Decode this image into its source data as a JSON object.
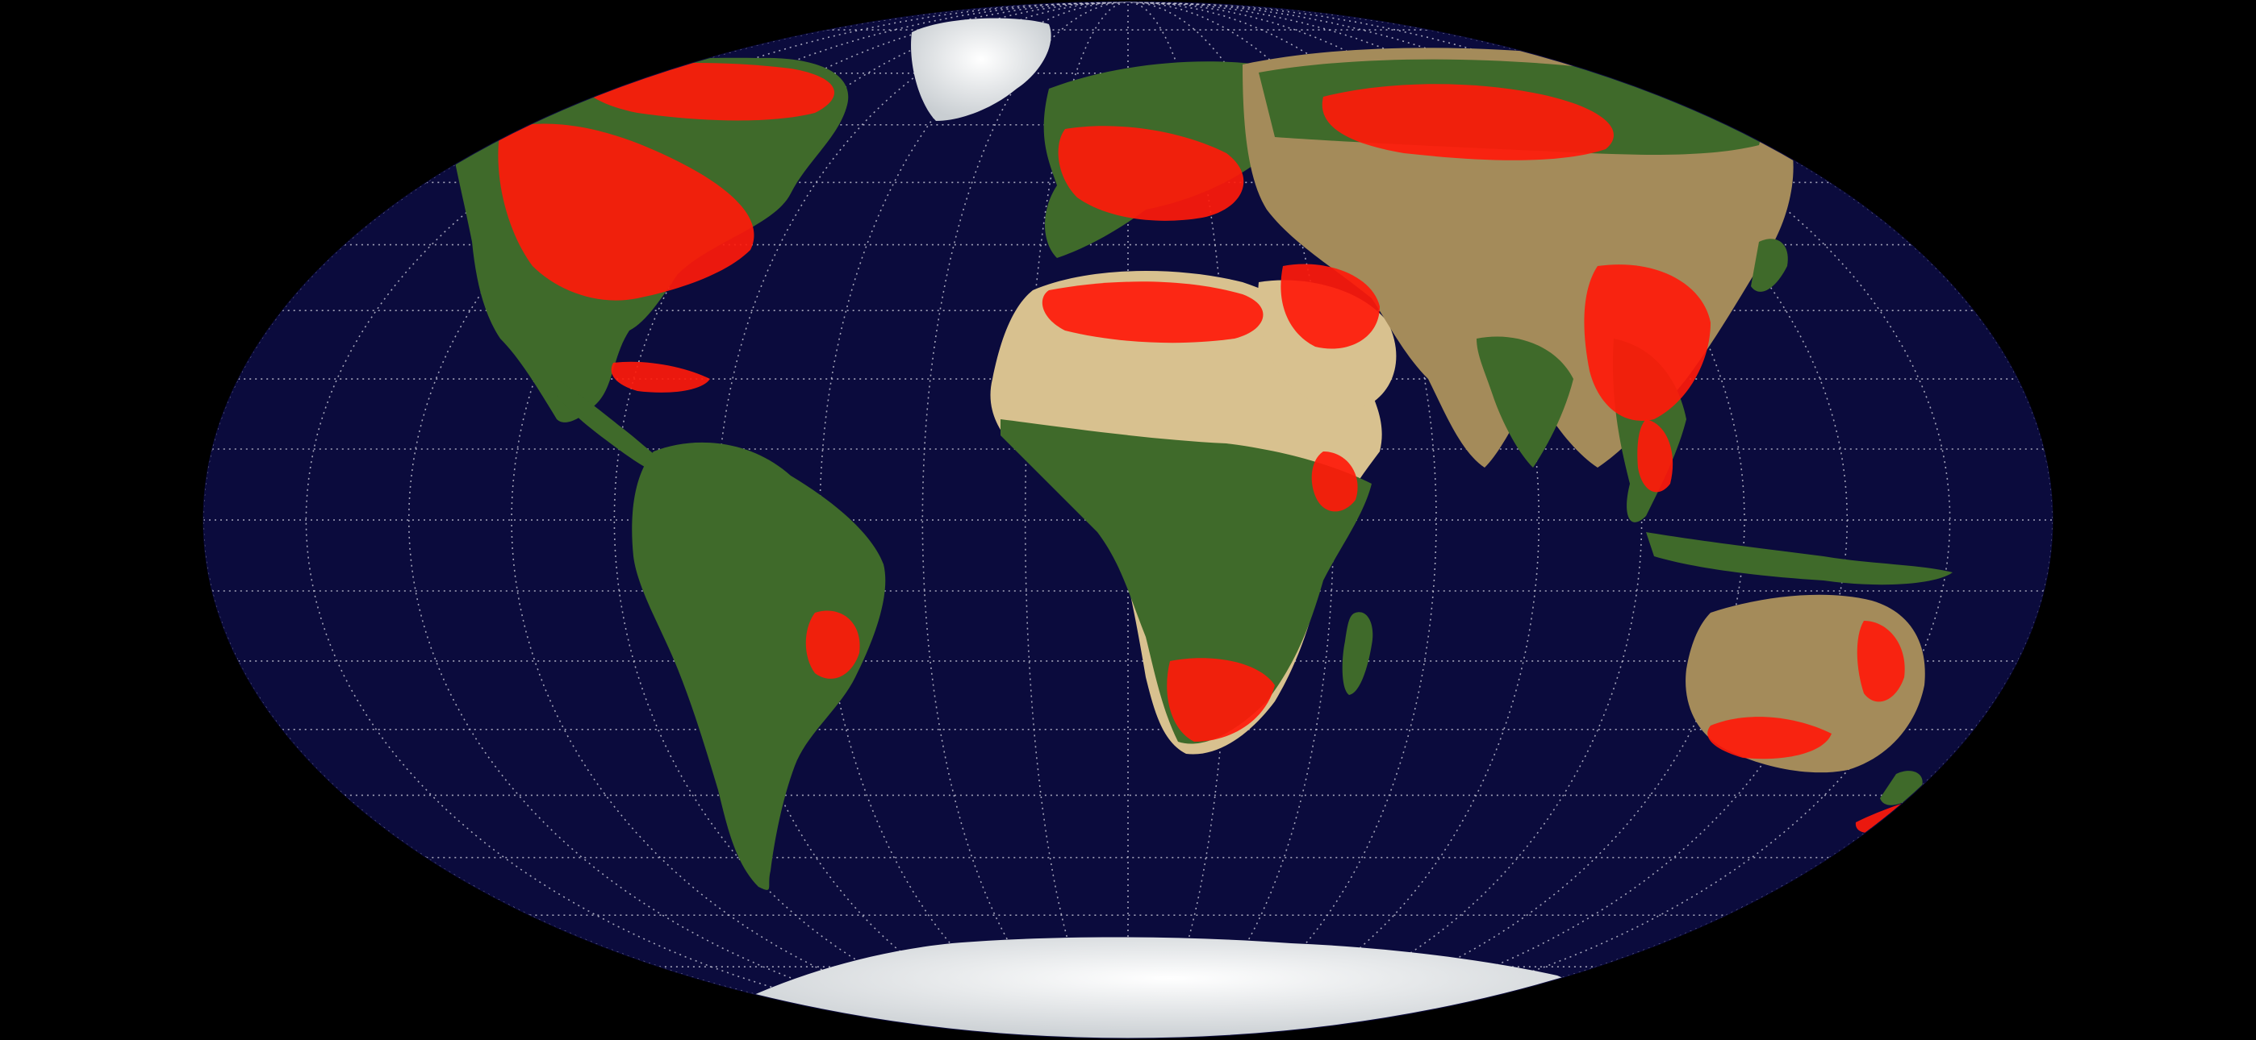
{
  "map": {
    "projection": "mollweide",
    "background_color": "#000000",
    "ocean_color": "#0b0b3d",
    "graticule_color": "#c8c8d8",
    "highlight_color": "#ff1a0a",
    "ice_color": "#eef1f3",
    "land_colors": {
      "vegetation": "#3f6a2a",
      "dry": "#a48b5a",
      "desert": "#d8c18f"
    },
    "graticule": {
      "meridian_spacing_deg": 20,
      "parallel_spacing_deg": 10,
      "style": "dotted"
    },
    "layers": [
      "ocean",
      "graticule",
      "landmasses",
      "ice-caps",
      "highlighted-regions"
    ]
  }
}
